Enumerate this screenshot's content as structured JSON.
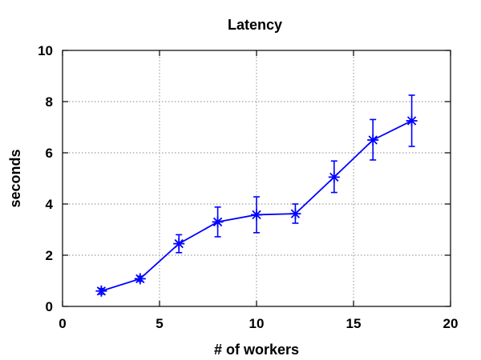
{
  "chart_data": {
    "type": "line",
    "title": "Latency",
    "xlabel": "# of workers",
    "ylabel": "seconds",
    "xlim": [
      0,
      20
    ],
    "ylim": [
      0,
      10
    ],
    "xticks": [
      0,
      5,
      10,
      15,
      20
    ],
    "yticks": [
      0,
      2,
      4,
      6,
      8,
      10
    ],
    "xtick_labels": [
      "0",
      "5",
      "10",
      "15",
      "20"
    ],
    "ytick_labels": [
      "0",
      "2",
      "4",
      "6",
      "8",
      "10"
    ],
    "grid": true,
    "legend": "none",
    "marker": "asterisk",
    "series_color": "#0000ff",
    "series": [
      {
        "x": [
          2,
          4,
          6,
          8,
          10,
          12,
          14,
          16,
          18
        ],
        "y": [
          0.6,
          1.08,
          2.45,
          3.3,
          3.58,
          3.62,
          5.05,
          6.5,
          7.25
        ],
        "y_low": [
          0.48,
          0.98,
          2.1,
          2.72,
          2.88,
          3.25,
          4.45,
          5.72,
          6.25
        ],
        "y_high": [
          0.7,
          1.18,
          2.8,
          3.88,
          4.28,
          4.0,
          5.68,
          7.3,
          8.25
        ]
      }
    ]
  }
}
